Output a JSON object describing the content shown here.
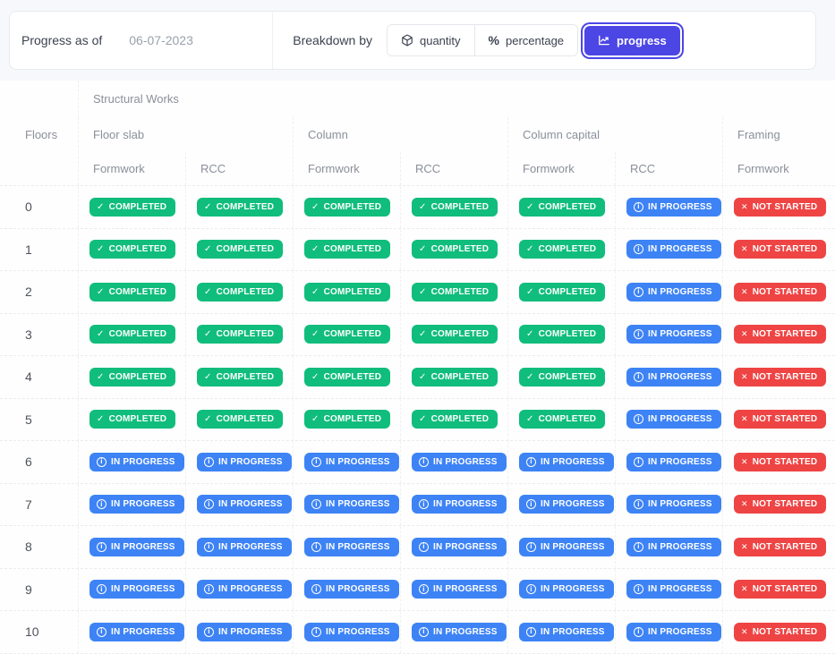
{
  "toolbar": {
    "accent_color": "#4c46e5",
    "progress_as_of_label": "Progress as of",
    "date_value": "06-07-2023",
    "breakdown_label": "Breakdown by",
    "buttons": [
      {
        "id": "quantity",
        "label": "quantity",
        "icon": "cube-icon",
        "selected": false
      },
      {
        "id": "percentage",
        "label": "percentage",
        "icon": "percent-icon",
        "selected": false
      },
      {
        "id": "progress",
        "label": "progress",
        "icon": "line-chart-icon",
        "selected": true
      }
    ]
  },
  "table": {
    "group_header": "Structural Works",
    "floors_header": "Floors",
    "column_groups": [
      {
        "label": "Floor slab",
        "sub": [
          "Formwork",
          "RCC"
        ]
      },
      {
        "label": "Column",
        "sub": [
          "Formwork",
          "RCC"
        ]
      },
      {
        "label": "Column capital",
        "sub": [
          "Formwork",
          "RCC"
        ]
      },
      {
        "label": "Framing",
        "sub": [
          "Formwork"
        ]
      }
    ],
    "statuses": {
      "completed": {
        "label": "COMPLETED",
        "color": "#10bd7c",
        "icon": "check"
      },
      "in_progress": {
        "label": "IN PROGRESS",
        "color": "#3d83f5",
        "icon": "info"
      },
      "not_started": {
        "label": "NOT STARTED",
        "color": "#ef4444",
        "icon": "x"
      }
    },
    "rows": [
      {
        "floor": "0",
        "cells": [
          "completed",
          "completed",
          "completed",
          "completed",
          "completed",
          "in_progress",
          "not_started"
        ]
      },
      {
        "floor": "1",
        "cells": [
          "completed",
          "completed",
          "completed",
          "completed",
          "completed",
          "in_progress",
          "not_started"
        ]
      },
      {
        "floor": "2",
        "cells": [
          "completed",
          "completed",
          "completed",
          "completed",
          "completed",
          "in_progress",
          "not_started"
        ]
      },
      {
        "floor": "3",
        "cells": [
          "completed",
          "completed",
          "completed",
          "completed",
          "completed",
          "in_progress",
          "not_started"
        ]
      },
      {
        "floor": "4",
        "cells": [
          "completed",
          "completed",
          "completed",
          "completed",
          "completed",
          "in_progress",
          "not_started"
        ]
      },
      {
        "floor": "5",
        "cells": [
          "completed",
          "completed",
          "completed",
          "completed",
          "completed",
          "in_progress",
          "not_started"
        ]
      },
      {
        "floor": "6",
        "cells": [
          "in_progress",
          "in_progress",
          "in_progress",
          "in_progress",
          "in_progress",
          "in_progress",
          "not_started"
        ]
      },
      {
        "floor": "7",
        "cells": [
          "in_progress",
          "in_progress",
          "in_progress",
          "in_progress",
          "in_progress",
          "in_progress",
          "not_started"
        ]
      },
      {
        "floor": "8",
        "cells": [
          "in_progress",
          "in_progress",
          "in_progress",
          "in_progress",
          "in_progress",
          "in_progress",
          "not_started"
        ]
      },
      {
        "floor": "9",
        "cells": [
          "in_progress",
          "in_progress",
          "in_progress",
          "in_progress",
          "in_progress",
          "in_progress",
          "not_started"
        ]
      },
      {
        "floor": "10",
        "cells": [
          "in_progress",
          "in_progress",
          "in_progress",
          "in_progress",
          "in_progress",
          "in_progress",
          "not_started"
        ]
      }
    ]
  }
}
